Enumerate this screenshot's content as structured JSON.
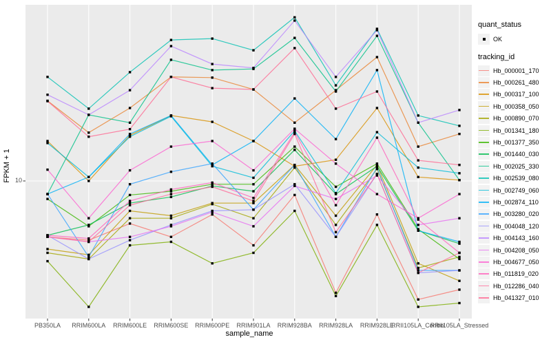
{
  "figure": {
    "background": "#FFFFFF",
    "panel_background": "#EBEBEB",
    "grid_color": "#FFFFFF",
    "axis_text_color": "#4D4D4D",
    "point_color": "#000000"
  },
  "axes": {
    "y_title": "FPKM + 1",
    "x_title": "sample_name",
    "y_tick_label": "10"
  },
  "legend": {
    "quant_title": "quant_status",
    "quant_ok_label": "OK",
    "tracking_title": "tracking_id"
  },
  "chart_data": {
    "type": "line",
    "title": "",
    "xlabel": "sample_name",
    "ylabel": "FPKM + 1",
    "y_scale": "log10",
    "y_ticks": [
      10
    ],
    "ylim": [
      1.9,
      80
    ],
    "grid": "major",
    "legend_position": "right",
    "point_shape": "filled-square-black",
    "quant_status_all": "OK",
    "x": [
      "PB350LA",
      "RRIM600LA",
      "RRIM600LE",
      "RRIM600SE",
      "RRIM600PE",
      "RRIM901LA",
      "RRIM928BA",
      "RRIM928LA",
      "RRIM928LE",
      "RRII105LA_Control",
      "RRII105LA_Stressed"
    ],
    "series": [
      {
        "name": "Hb_000001_170",
        "color": "#F8766D",
        "values": [
          5.0,
          4.8,
          5.9,
          5.0,
          6.6,
          4.5,
          8.4,
          2.5,
          6.6,
          2.3,
          2.6
        ]
      },
      {
        "name": "Hb_000261_480",
        "color": "#EA8331",
        "values": [
          27.0,
          18.2,
          24.7,
          36.3,
          36.0,
          31.1,
          20.6,
          30.8,
          46.4,
          15.3,
          17.9
        ]
      },
      {
        "name": "Hb_000317_100",
        "color": "#D89000",
        "values": [
          16.4,
          10.0,
          17.6,
          22.5,
          20.8,
          16.4,
          12.0,
          13.0,
          24.7,
          10.5,
          10.1
        ]
      },
      {
        "name": "Hb_000358_050",
        "color": "#C09B00",
        "values": [
          4.3,
          4.0,
          6.9,
          6.5,
          7.6,
          7.6,
          12.2,
          6.5,
          12.2,
          3.6,
          2.9
        ]
      },
      {
        "name": "Hb_000890_070",
        "color": "#A3A500",
        "values": [
          4.1,
          3.8,
          6.3,
          6.3,
          7.5,
          6.3,
          11.8,
          5.8,
          11.6,
          3.4,
          3.9
        ]
      },
      {
        "name": "Hb_001341_180",
        "color": "#7CAE00",
        "values": [
          3.7,
          2.1,
          4.5,
          4.7,
          3.6,
          4.1,
          6.9,
          2.4,
          5.8,
          2.1,
          2.2
        ]
      },
      {
        "name": "Hb_001377_350",
        "color": "#39B600",
        "values": [
          8.0,
          5.7,
          8.4,
          8.8,
          9.6,
          9.6,
          15.3,
          9.3,
          12.4,
          5.5,
          3.8
        ]
      },
      {
        "name": "Hb_001440_030",
        "color": "#00BB4E",
        "values": [
          5.1,
          5.8,
          7.6,
          8.2,
          9.4,
          8.8,
          14.7,
          8.5,
          12.0,
          5.4,
          4.6
        ]
      },
      {
        "name": "Hb_002025_330",
        "color": "#00C087",
        "values": [
          8.5,
          22.7,
          20.6,
          44.9,
          39.5,
          40.1,
          58.9,
          30.3,
          60.4,
          20.6,
          10.1
        ]
      },
      {
        "name": "Hb_002539_080",
        "color": "#00C0B2",
        "values": [
          36.3,
          24.5,
          38.5,
          57.4,
          58.4,
          50.5,
          76.0,
          32.7,
          65.9,
          22.5,
          19.8
        ]
      },
      {
        "name": "Hb_002749_060",
        "color": "#00BCD8",
        "values": [
          16.0,
          10.5,
          17.3,
          22.3,
          12.0,
          10.4,
          18.6,
          8.6,
          18.3,
          11.8,
          11.0
        ]
      },
      {
        "name": "Hb_002874_110",
        "color": "#00B0F6",
        "values": [
          8.5,
          10.5,
          17.9,
          22.5,
          12.2,
          16.4,
          27.8,
          16.8,
          39.5,
          5.4,
          4.7
        ]
      },
      {
        "name": "Hb_003280_020",
        "color": "#35A2FF",
        "values": [
          8.5,
          3.9,
          9.6,
          11.2,
          12.4,
          7.0,
          12.2,
          5.0,
          11.8,
          3.3,
          3.3
        ]
      },
      {
        "name": "Hb_004048_120",
        "color": "#9590FF",
        "values": [
          5.1,
          3.8,
          4.8,
          5.8,
          6.9,
          7.0,
          9.6,
          5.0,
          10.9,
          3.2,
          3.3
        ]
      },
      {
        "name": "Hb_004143_160",
        "color": "#B983FF",
        "values": [
          29.1,
          22.7,
          30.8,
          53.2,
          42.6,
          40.6,
          73.0,
          36.3,
          64.8,
          20.6,
          24.1
        ]
      },
      {
        "name": "Hb_004208_050",
        "color": "#E76BF3",
        "values": [
          5.0,
          4.7,
          5.0,
          5.7,
          6.8,
          5.7,
          9.4,
          8.0,
          10.7,
          5.8,
          6.3
        ]
      },
      {
        "name": "Hb_004677_050",
        "color": "#FD61D1",
        "values": [
          11.5,
          6.3,
          11.4,
          15.3,
          16.4,
          11.4,
          19.1,
          12.4,
          8.5,
          6.3,
          8.5
        ]
      },
      {
        "name": "Hb_011819_020",
        "color": "#FF62BC",
        "values": [
          5.1,
          4.9,
          7.8,
          9.0,
          9.8,
          8.1,
          18.3,
          7.4,
          17.1,
          6.2,
          4.1
        ]
      },
      {
        "name": "Hb_012286_040",
        "color": "#FF6A98",
        "values": [
          5.0,
          4.7,
          7.4,
          8.5,
          9.3,
          7.8,
          17.9,
          5.3,
          10.9,
          3.2,
          4.1
        ]
      },
      {
        "name": "Hb_041327_010",
        "color": "#FF6891",
        "values": [
          26.9,
          17.3,
          19.0,
          36.3,
          31.6,
          31.1,
          51.9,
          24.5,
          30.3,
          12.9,
          12.2
        ]
      }
    ]
  }
}
